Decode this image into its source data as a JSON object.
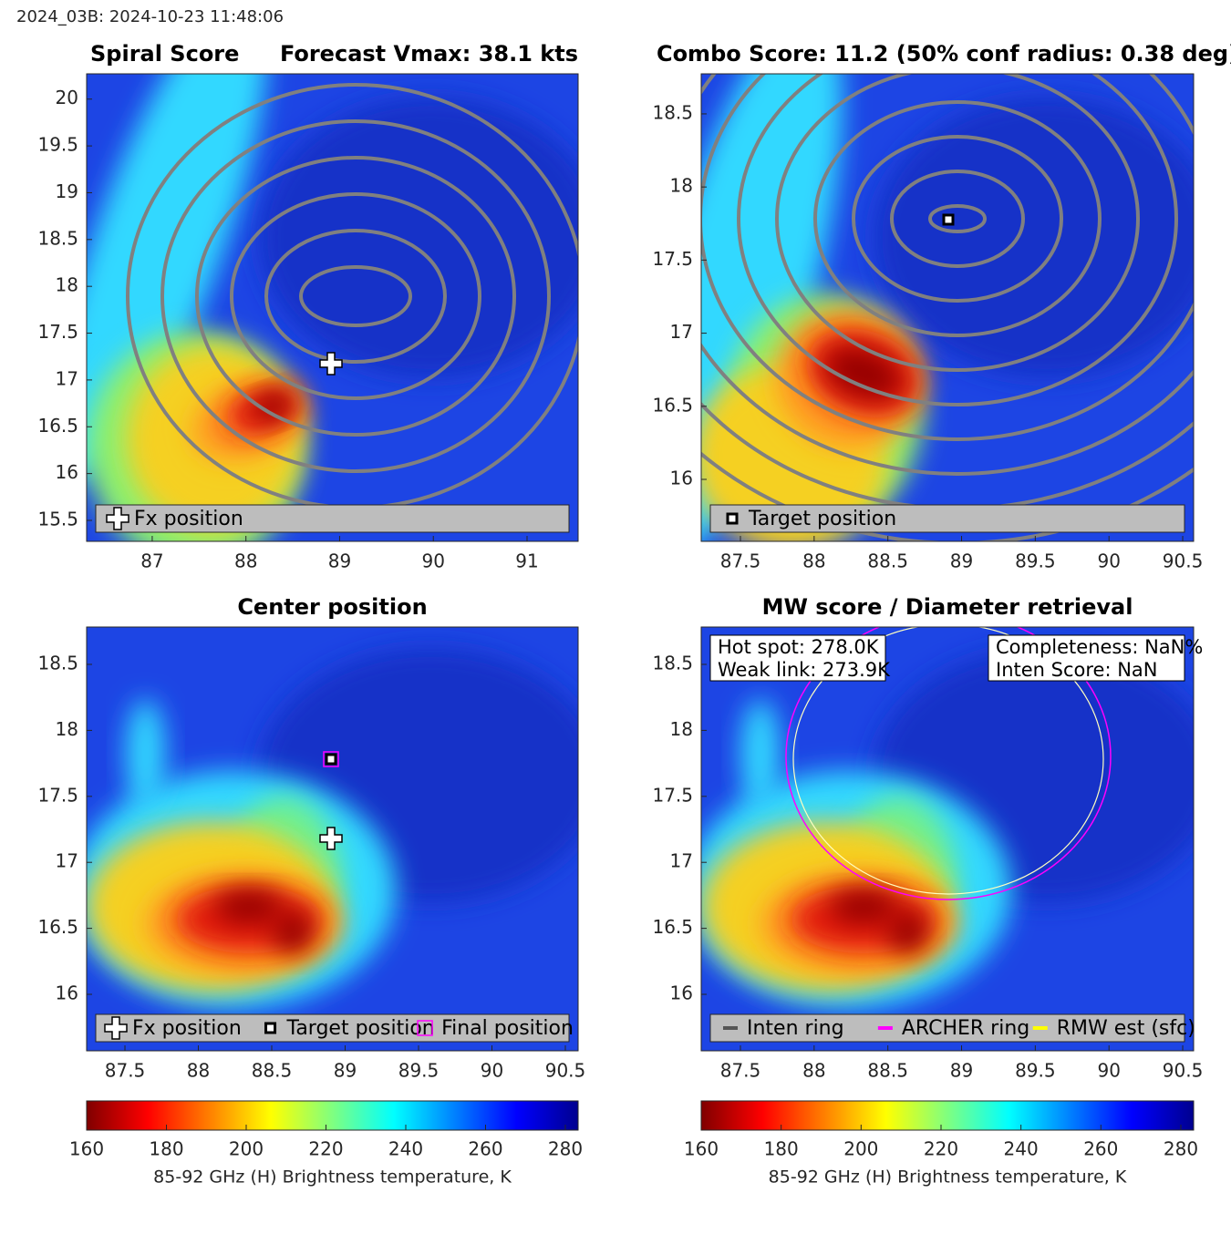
{
  "header": {
    "title": "2024_03B: 2024-10-23 11:48:06"
  },
  "chart_data": [
    {
      "type": "heatmap",
      "title": "Spiral Score",
      "title_right": "Forecast Vmax: 38.1 kts",
      "xlim": [
        86.3,
        91.545
      ],
      "ylim": [
        15.276,
        20.27
      ],
      "xticks": [
        87,
        88,
        89,
        90,
        91
      ],
      "yticks": [
        15.5,
        16,
        16.5,
        17,
        17.5,
        18,
        18.5,
        19,
        19.5,
        20
      ],
      "legend": [
        {
          "name": "Fx position"
        }
      ]
    },
    {
      "type": "heatmap",
      "title": "Combo Score: 11.2  (50% conf radius: 0.38 deg)",
      "xlim": [
        87.234,
        90.574
      ],
      "ylim": [
        15.576,
        18.774
      ],
      "xticks": [
        87.5,
        88,
        88.5,
        89,
        89.5,
        90,
        90.5
      ],
      "yticks": [
        16,
        16.5,
        17,
        17.5,
        18,
        18.5
      ],
      "legend": [
        {
          "name": "Target position"
        }
      ]
    },
    {
      "type": "heatmap",
      "title": "Center position",
      "xlim": [
        87.239,
        90.587
      ],
      "ylim": [
        15.572,
        18.783
      ],
      "xticks": [
        87.5,
        88,
        88.5,
        89,
        89.5,
        90,
        90.5
      ],
      "yticks": [
        16,
        16.5,
        17,
        17.5,
        18,
        18.5
      ],
      "legend": [
        {
          "name": "Fx position"
        },
        {
          "name": "Target position"
        },
        {
          "name": "Final position",
          "color": "#ff00ff"
        }
      ],
      "colorbar": {
        "label": "85-92 GHz (H) Brightness temperature, K",
        "lim": [
          160,
          283.2
        ],
        "ticks": [
          160,
          180,
          200,
          220,
          240,
          260,
          280
        ]
      }
    },
    {
      "type": "heatmap",
      "title": "MW score / Diameter retrieval",
      "xlim": [
        87.234,
        90.574
      ],
      "ylim": [
        15.572,
        18.783
      ],
      "xticks": [
        87.5,
        88,
        88.5,
        89,
        89.5,
        90,
        90.5
      ],
      "yticks": [
        16,
        16.5,
        17,
        17.5,
        18,
        18.5
      ],
      "legend": [
        {
          "name": "Inten ring",
          "color": "#555555"
        },
        {
          "name": "ARCHER ring",
          "color": "#ff00ff"
        },
        {
          "name": "RMW est (sfc)",
          "color": "#ffff00"
        }
      ],
      "annotations": [
        [
          "Hot spot: 278.0K",
          "Weak link: 273.9K"
        ],
        [
          "Completeness: NaN%",
          "Inten Score: NaN"
        ]
      ],
      "colorbar": {
        "label": "85-92 GHz (H) Brightness temperature, K",
        "lim": [
          160,
          283.2
        ],
        "ticks": [
          160,
          180,
          200,
          220,
          240,
          260,
          280
        ]
      }
    }
  ]
}
